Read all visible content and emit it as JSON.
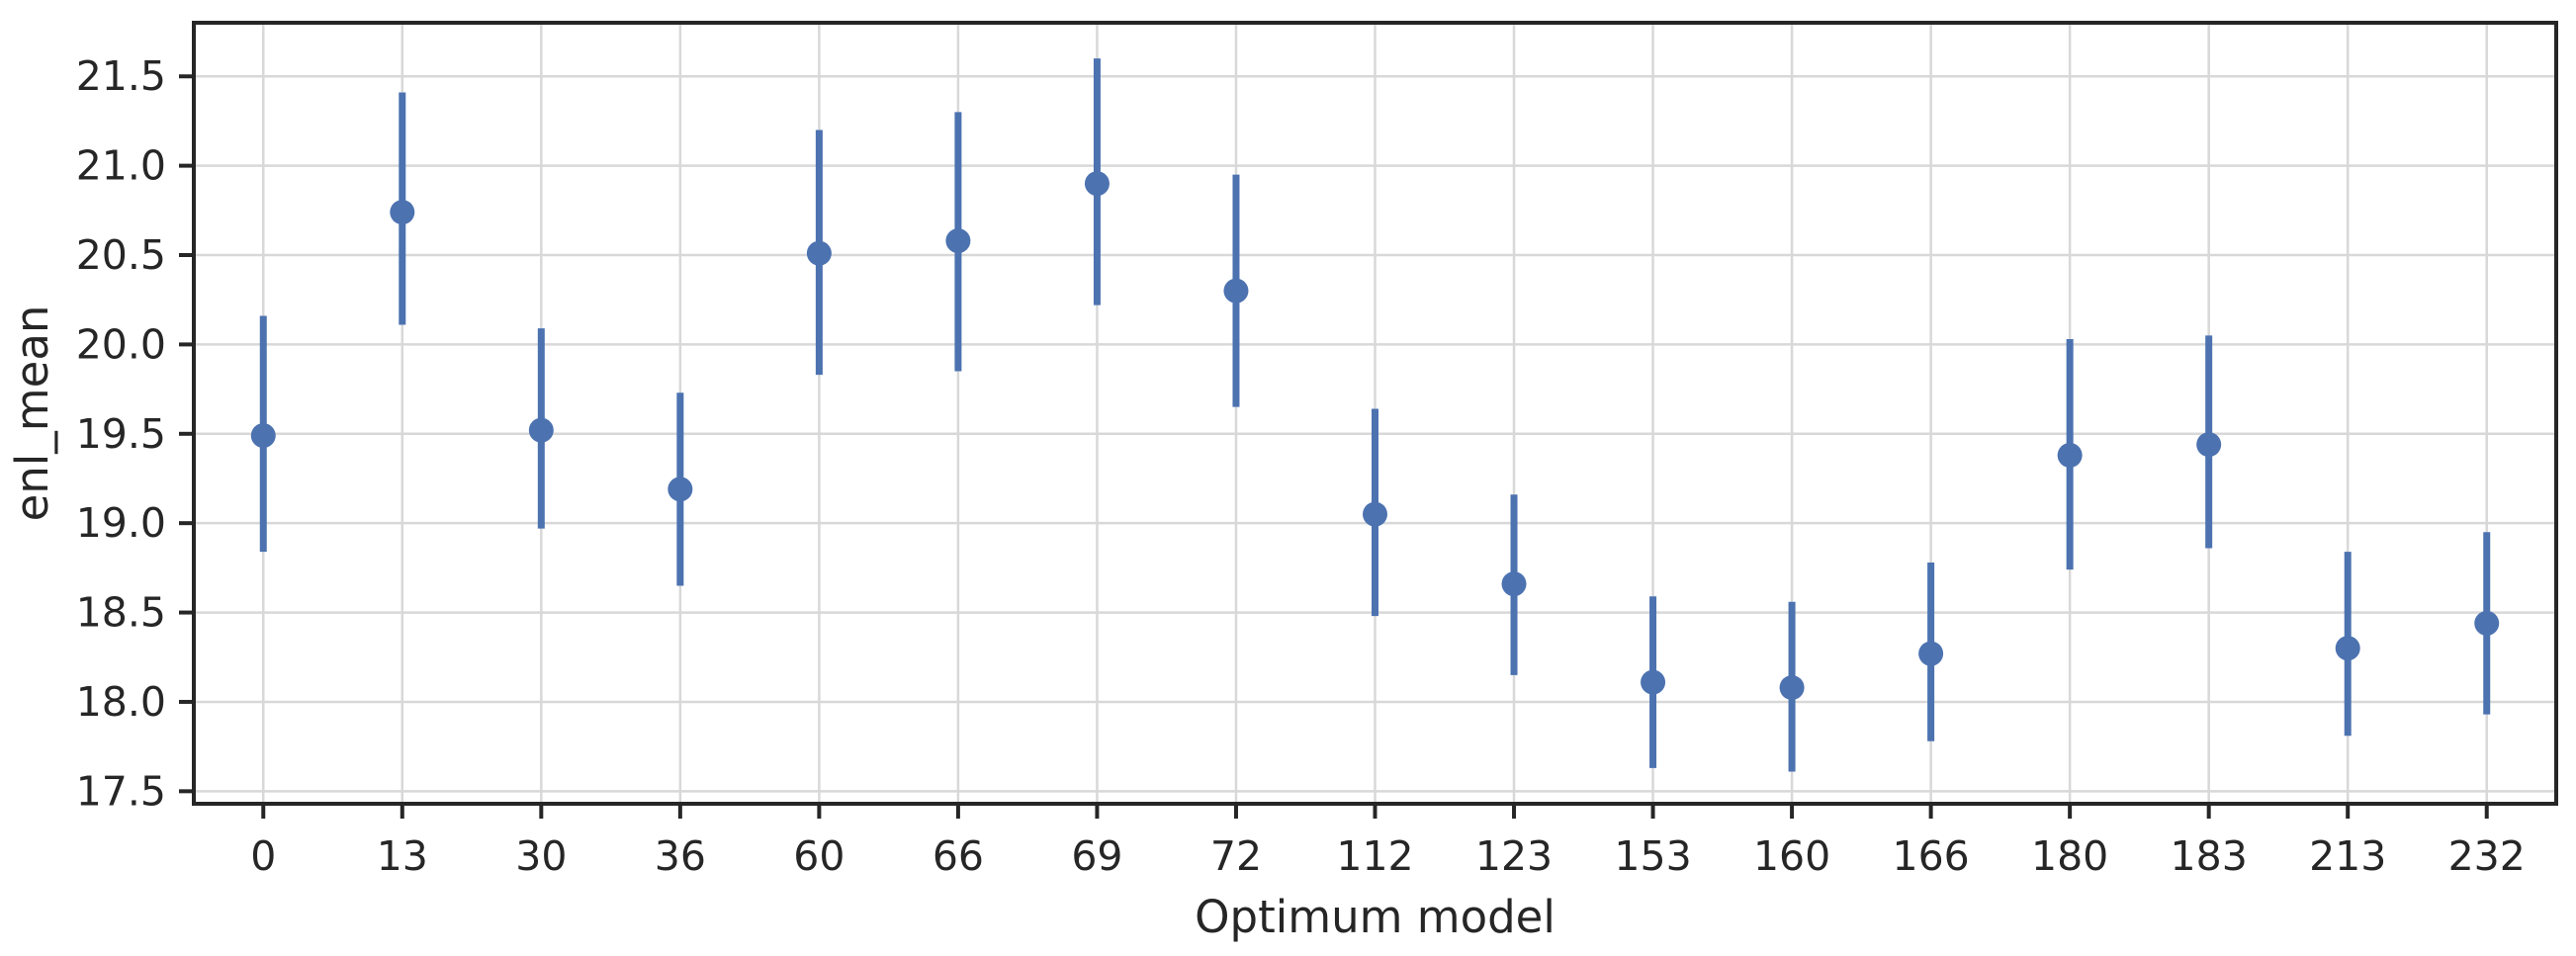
{
  "figure": {
    "background_color": "#ffffff"
  },
  "chart_data": {
    "type": "scatter",
    "subtype": "pointplot-with-error-bars",
    "title": "",
    "xlabel": "Optimum model",
    "ylabel": "enl_mean",
    "categories": [
      "0",
      "13",
      "30",
      "36",
      "60",
      "66",
      "69",
      "72",
      "112",
      "123",
      "153",
      "160",
      "166",
      "180",
      "183",
      "213",
      "232"
    ],
    "series": [
      {
        "name": "enl_mean",
        "values": [
          19.49,
          20.74,
          19.52,
          19.19,
          20.51,
          20.58,
          20.9,
          20.3,
          19.05,
          18.66,
          18.11,
          18.08,
          18.27,
          19.38,
          19.44,
          18.3,
          18.44
        ],
        "ci_low": [
          18.84,
          20.11,
          18.97,
          18.65,
          19.83,
          19.85,
          20.22,
          19.65,
          18.48,
          18.15,
          17.63,
          17.61,
          17.78,
          18.74,
          18.86,
          17.81,
          17.93
        ],
        "ci_high": [
          20.16,
          21.41,
          20.09,
          19.73,
          21.2,
          21.3,
          21.6,
          20.95,
          19.64,
          19.16,
          18.59,
          18.56,
          18.78,
          20.03,
          20.05,
          18.84,
          18.95
        ]
      }
    ],
    "ylim": [
      17.43,
      21.8
    ],
    "y_ticks": [
      17.5,
      18.0,
      18.5,
      19.0,
      19.5,
      20.0,
      20.5,
      21.0,
      21.5
    ],
    "y_tick_labels": [
      "17.5",
      "18.0",
      "18.5",
      "19.0",
      "19.5",
      "20.0",
      "20.5",
      "21.0",
      "21.5"
    ],
    "grid": "both",
    "legend": "none",
    "colors": {
      "point": "#4C72B0",
      "error_bar": "#4C72B0",
      "grid": "#D8D8D8",
      "spine": "#262626",
      "text": "#262626",
      "background": "#FFFFFF"
    }
  }
}
